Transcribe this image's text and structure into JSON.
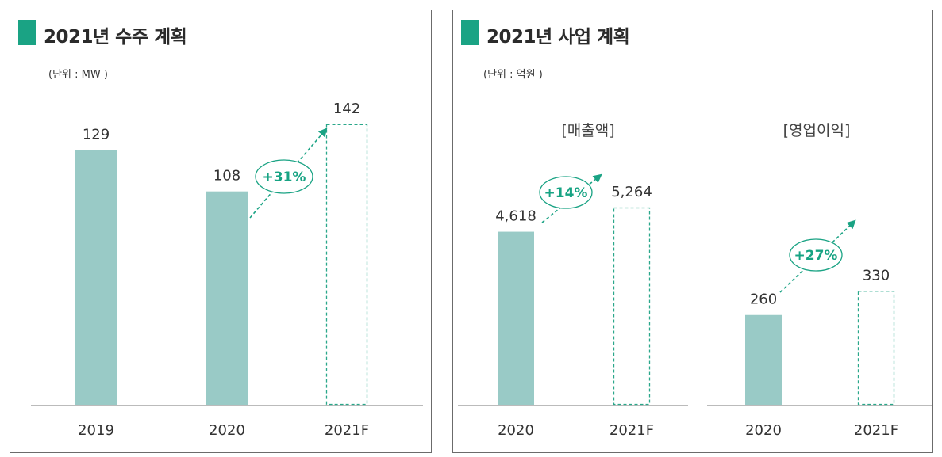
{
  "left_panel": {
    "title": "2021년 수주 계획",
    "unit": "(단위 : MW )",
    "growth_label": "+31%"
  },
  "right_panel": {
    "title": "2021년 사업 계획",
    "unit": "(단위 : 억원 )",
    "revenue": {
      "label": "[매출액]",
      "growth_label": "+14%"
    },
    "operating_profit": {
      "label": "[영업이익]",
      "growth_label": "+27%"
    }
  },
  "colors": {
    "accent": "#1aa384",
    "bar_fill": "#99cac6",
    "forecast_stroke": "#2aa78a",
    "axis": "#bbbbbb"
  },
  "chart_data": [
    {
      "type": "bar",
      "title": "2021년 수주 계획",
      "unit": "MW",
      "categories": [
        "2019",
        "2020",
        "2021F"
      ],
      "values": [
        129,
        108,
        142
      ],
      "value_labels": [
        "129",
        "108",
        "142"
      ],
      "forecast": [
        false,
        false,
        true
      ],
      "annotation": "+31%",
      "ylim": [
        0,
        160
      ]
    },
    {
      "type": "bar",
      "title": "[매출액]",
      "unit": "억원",
      "categories": [
        "2020",
        "2021F"
      ],
      "values": [
        4618,
        5264
      ],
      "value_labels": [
        "4,618",
        "5,264"
      ],
      "forecast": [
        false,
        true
      ],
      "annotation": "+14%",
      "ylim": [
        0,
        6300
      ]
    },
    {
      "type": "bar",
      "title": "[영업이익]",
      "unit": "억원",
      "categories": [
        "2020",
        "2021F"
      ],
      "values": [
        260,
        330
      ],
      "value_labels": [
        "260",
        "330"
      ],
      "forecast": [
        false,
        true
      ],
      "annotation": "+27%",
      "ylim": [
        0,
        590
      ]
    }
  ]
}
